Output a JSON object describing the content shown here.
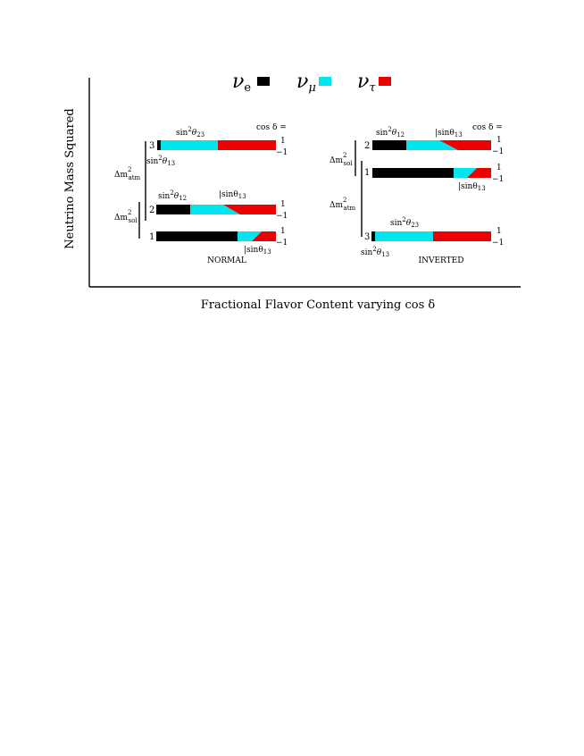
{
  "legend": {
    "nu_e": "ν",
    "nu_e_sub": "e",
    "nu_mu": "ν",
    "nu_mu_sub": "μ",
    "nu_tau": "ν",
    "nu_tau_sub": "τ"
  },
  "colors": {
    "electron": "#000000",
    "muon": "#00e5ee",
    "tau": "#ee0000"
  },
  "axes": {
    "y_label": "Neutrino Mass Squared",
    "x_label": "Fractional Flavor Content varying cos δ"
  },
  "normal": {
    "title": "NORMAL",
    "cos_delta": "cos δ =",
    "level3": "3",
    "level2": "2",
    "level1": "1",
    "dm_atm": "Δm",
    "dm_atm_sup": "2",
    "dm_atm_sub": "atm",
    "dm_sol": "Δm",
    "dm_sol_sup": "2",
    "dm_sol_sub": "sol",
    "sin2_23": "sin",
    "sin2_23_theta": "θ",
    "sin2_23_sub": "23",
    "sin2_13": "sin",
    "sin2_13_theta": "θ",
    "sin2_13_sub": "13",
    "sin2_12": "sin",
    "sin2_12_theta": "θ",
    "sin2_12_sub": "12",
    "sin13_a": "|sinθ",
    "sin13_a_sub": "13",
    "sin13_b": "|sinθ",
    "sin13_b_sub": "13",
    "r3_top": "1",
    "r3_bot": "−1",
    "r2_top": "1",
    "r2_bot": "−1",
    "r1_top": "1",
    "r1_bot": "−1"
  },
  "inverted": {
    "title": "INVERTED",
    "cos_delta": "cos δ =",
    "level2": "2",
    "level1": "1",
    "level3": "3",
    "dm_sol": "Δm",
    "dm_sol_sup": "2",
    "dm_sol_sub": "sol",
    "dm_atm": "Δm",
    "dm_atm_sup": "2",
    "dm_atm_sub": "atm",
    "sin2_12": "sin",
    "sin2_12_theta": "θ",
    "sin2_12_sub": "12",
    "sin2_23": "sin",
    "sin2_23_theta": "θ",
    "sin2_23_sub": "23",
    "sin2_13": "sin",
    "sin2_13_theta": "θ",
    "sin2_13_sub": "13",
    "sin13_a": "|sinθ",
    "sin13_a_sub": "13",
    "sin13_b": "|sinθ",
    "sin13_b_sub": "13",
    "r2_top": "1",
    "r2_bot": "−1",
    "r1_top": "1",
    "r1_bot": "−1",
    "r3_top": "1",
    "r3_bot": "−1"
  }
}
